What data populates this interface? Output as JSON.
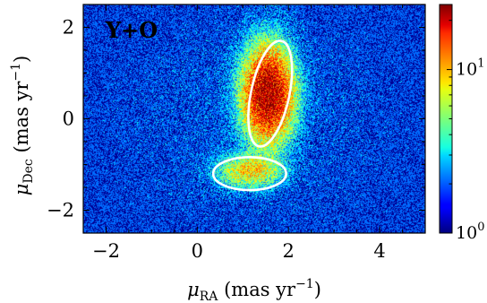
{
  "chart_data": {
    "type": "heatmap",
    "panel_label": "Y+O",
    "xlabel": {
      "symbol": "μ",
      "sub": "RA",
      "unit": " (mas yr",
      "exp": "−1",
      "close": ")"
    },
    "ylabel": {
      "symbol": "μ",
      "sub": "Dec",
      "unit": " (mas yr",
      "exp": "−1",
      "close": ")"
    },
    "xlim": [
      -2.5,
      5.0
    ],
    "ylim": [
      -2.5,
      2.5
    ],
    "x_ticks": [
      -2,
      0,
      2,
      4
    ],
    "x_tick_labels": [
      "−2",
      "0",
      "2",
      "4"
    ],
    "y_ticks": [
      -2,
      0,
      2
    ],
    "y_tick_labels": [
      "−2",
      "0",
      "2"
    ],
    "colorbar": {
      "scale": "log",
      "range": [
        1,
        25
      ],
      "ticks": [
        {
          "value": 1,
          "base": "10",
          "exp": "0"
        },
        {
          "value": 10,
          "base": "10",
          "exp": "1"
        }
      ],
      "colormap": "jet"
    },
    "density_components": [
      {
        "center": [
          1.55,
          0.55
        ],
        "sigma": [
          0.33,
          0.62
        ],
        "peak": 22
      },
      {
        "center": [
          1.15,
          -1.15
        ],
        "sigma": [
          0.42,
          0.22
        ],
        "peak": 7
      }
    ],
    "background_level": 1.6,
    "ellipses": [
      {
        "center": [
          1.6,
          0.55
        ],
        "semi_axes": [
          0.42,
          1.18
        ],
        "angle_deg": 12,
        "color": "#ffffff"
      },
      {
        "center": [
          1.15,
          -1.2
        ],
        "semi_axes": [
          0.8,
          0.36
        ],
        "angle_deg": 0,
        "color": "#ffffff"
      }
    ]
  }
}
